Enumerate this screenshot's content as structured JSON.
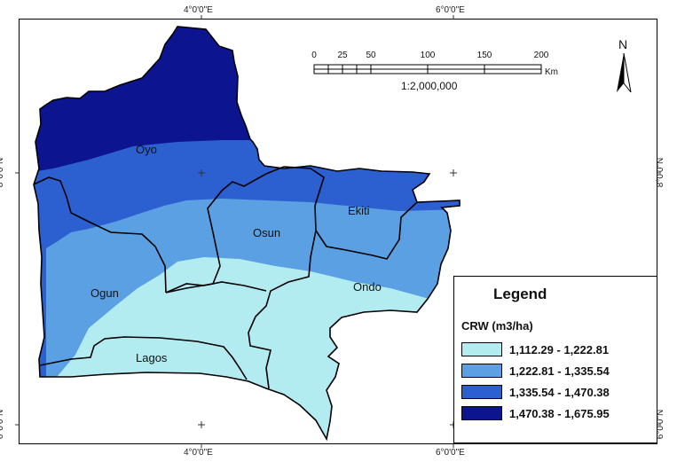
{
  "grid": {
    "lon_left": "4°0'0\"E",
    "lon_right": "6°0'0\"E",
    "lat_top": "8°0'0\"N",
    "lat_bottom": "6°0'0\"N"
  },
  "states": {
    "oyo": "Oyo",
    "osun": "Osun",
    "ekiti": "Ekiti",
    "ogun": "Ogun",
    "ondo": "Ondo",
    "lagos": "Lagos"
  },
  "scale_bar": {
    "ticks": [
      "0",
      "25",
      "50",
      "100",
      "150",
      "200"
    ],
    "unit": "Km",
    "ratio": "1:2,000,000"
  },
  "north_arrow": {
    "label": "N",
    "icon": "north-arrow-icon"
  },
  "legend": {
    "title": "Legend",
    "subtitle": "CRW (m3/ha)",
    "classes": [
      {
        "label": "1,112.29 - 1,222.81",
        "color": "#b2ebf0"
      },
      {
        "label": "1,222.81 - 1,335.54",
        "color": "#5aa0e3"
      },
      {
        "label": "1,335.54 - 1,470.38",
        "color": "#2c5fd0"
      },
      {
        "label": "1,470.38 - 1,675.95",
        "color": "#0c148f"
      }
    ]
  }
}
